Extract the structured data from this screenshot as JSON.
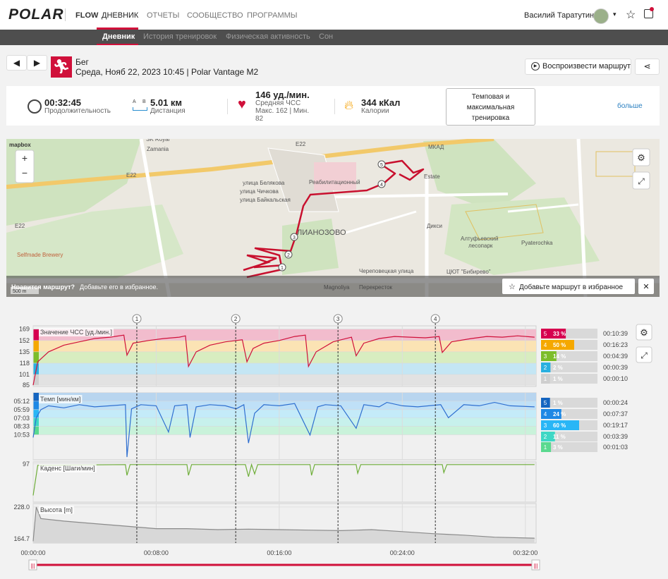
{
  "nav": {
    "logo": "POLAR",
    "flow": "FLOW",
    "items": [
      "ДНЕВНИК",
      "ОТЧЕТЫ",
      "СООБЩЕСТВО",
      "ПРОГРАММЫ"
    ],
    "user": "Василий Таратутин"
  },
  "subnav": [
    "Дневник",
    "История тренировок",
    "Физическая активность",
    "Сон"
  ],
  "session": {
    "sport": "Бег",
    "datetime": "Среда, Нояб 22, 2023 10:45 | Polar Vantage M2",
    "play_route": "Воспроизвести маршрут"
  },
  "summary": {
    "duration": "00:32:45",
    "duration_label": "Продолжительность",
    "distance_icon": [
      "A",
      "B"
    ],
    "distance": "5.01 км",
    "distance_label": "Дистанция",
    "hr_avg": "146 уд./мин.",
    "hr_avg_label": "Средняя ЧСС",
    "hr_maxmin": "Макс. 162 | Мин.",
    "hr_min": "82",
    "calories": "344 кКал",
    "calories_label": "Калории",
    "benefit": [
      "Темповая и",
      "максимальная",
      "тренировка"
    ],
    "more": "больше"
  },
  "map": {
    "attribution": "mapbox",
    "labels": [
      "SK Royal",
      "Zamania",
      "E22",
      "E22",
      "E22",
      "улица Белякова",
      "улица Чичкова",
      "улица Байкальская",
      "Реабилитационный",
      "ЛИАНОЗОВО",
      "Selfmade Brewery",
      "Дикси",
      "Алтуфьевский",
      "лесопарк",
      "Pyaterochka",
      "Estate",
      "Magnoliya",
      "Перекресток",
      "ЦЮТ \"Бибирево\"",
      "Череповецкая улица",
      "МКАД"
    ],
    "route_markers": [
      "1",
      "2",
      "3",
      "4",
      "5"
    ],
    "scale": "500 m",
    "prompt": "Нравится маршрут?",
    "prompt_hint": "Добавьте его в избранное.",
    "favorite": "Добавьте маршрут в избранное",
    "zoom": [
      "+",
      "−"
    ]
  },
  "charts": {
    "xlim": [
      0,
      32.7
    ],
    "xticks": [
      {
        "value": 0,
        "label": "00:00:00"
      },
      {
        "value": 8,
        "label": "00:08:00"
      },
      {
        "value": 16,
        "label": "00:16:00"
      },
      {
        "value": 24,
        "label": "00:24:00"
      },
      {
        "value": 32,
        "label": "00:32:00"
      }
    ],
    "laps": {
      "labels": [
        "1",
        "2",
        "3",
        "4"
      ],
      "x": [
        6.74,
        13.17,
        19.82,
        26.15
      ]
    },
    "panels": [
      {
        "type": "line",
        "key": "hr",
        "title": "Значение ЧСС [уд./мин.]",
        "color": "#d0103a",
        "scale": "linear",
        "ylim": [
          83,
          174
        ],
        "yticks": [
          85,
          101,
          118,
          135,
          152,
          169
        ],
        "bands": "between_ticks",
        "band_colors": [
          "#e2e2e2",
          "#c4e6f4",
          "#d8edc0",
          "#fbe3b4",
          "#f2bccd"
        ],
        "strip_colors": [
          "#cfcfcf",
          "#2ab0e0",
          "#7cbd2a",
          "#f5a800",
          "#d6004f"
        ],
        "x": [
          0,
          0.3,
          1,
          2,
          3,
          4,
          5,
          5.9,
          6.1,
          6.5,
          7.5,
          8.5,
          9.5,
          9.9,
          10.1,
          10.6,
          11.5,
          12.5,
          13.6,
          13.9,
          14.3,
          15,
          16,
          17,
          17.7,
          17.9,
          18.4,
          19.5,
          20.7,
          21,
          21.5,
          22.5,
          23.5,
          24.5,
          25.5,
          26.4,
          26.6,
          27.2,
          28.5,
          29.5,
          30.5,
          31.5,
          32.6
        ],
        "values": [
          85,
          120,
          135,
          145,
          150,
          155,
          157,
          160,
          130,
          148,
          152,
          155,
          157,
          159,
          113,
          135,
          145,
          150,
          153,
          120,
          140,
          148,
          152,
          158,
          160,
          113,
          135,
          150,
          157,
          129,
          148,
          155,
          158,
          157,
          156,
          158,
          134,
          150,
          155,
          158,
          157,
          159,
          157
        ]
      },
      {
        "type": "line",
        "key": "pace",
        "title": "Темп [мин/км]",
        "color": "#2f6fd0",
        "scale": "reciprocal",
        "ylim": [
          60,
          4.6
        ],
        "yticks": [
          {
            "value": 5.2,
            "label": "05:12"
          },
          {
            "value": 5.983,
            "label": "05:59"
          },
          {
            "value": 7.05,
            "label": "07:03"
          },
          {
            "value": 8.55,
            "label": "08:33"
          },
          {
            "value": 10.883,
            "label": "10:53"
          }
        ],
        "bands": "ticks_to_limit",
        "band_colors": [
          "#c9f2da",
          "#c7f1ec",
          "#c4ebf9",
          "#bfe0f7",
          "#b8d5ef"
        ],
        "strip_colors": [
          "#5ad98f",
          "#3ed7c5",
          "#29b6f6",
          "#1e88e5",
          "#1565c0"
        ],
        "x": [
          0,
          0.2,
          0.5,
          1,
          2,
          3,
          4,
          5,
          6,
          6.1,
          6.4,
          7,
          8,
          8.8,
          9.2,
          10,
          10.2,
          10.6,
          11.5,
          12.5,
          13.2,
          13.7,
          14,
          14.4,
          15,
          16,
          17,
          18,
          18.5,
          19,
          20,
          21,
          21.5,
          22.5,
          23,
          24,
          25,
          26.5,
          27,
          28,
          29,
          30,
          31,
          32.6
        ],
        "values": [
          12,
          7,
          6,
          5.6,
          5.8,
          5.5,
          5.7,
          5.6,
          5.5,
          40,
          5.9,
          5.5,
          5.6,
          10,
          5.6,
          5.5,
          12,
          5.7,
          5.5,
          5.6,
          5.9,
          5.5,
          15,
          6.4,
          5.5,
          5.6,
          5.4,
          11,
          5.7,
          5.5,
          5.6,
          9,
          5.5,
          5.7,
          5.3,
          5.6,
          5.7,
          5.5,
          7,
          5.5,
          5.6,
          5.3,
          5.6,
          5.7
        ]
      },
      {
        "type": "line",
        "key": "cadence",
        "title": "Каденс [Шаги/мин]",
        "color": "#6fae3a",
        "scale": "linear",
        "ylim": [
          40,
          100
        ],
        "yticks": [
          97
        ],
        "x": [
          0,
          0.3,
          6,
          6.1,
          6.3,
          10,
          10.1,
          10.3,
          13.8,
          14,
          14.2,
          14.4,
          14.6,
          18,
          18.1,
          18.3,
          21,
          21.1,
          21.3,
          26.6,
          26.7,
          26.9,
          32.6
        ],
        "values": [
          50,
          95,
          96,
          80,
          96,
          96,
          80,
          96,
          96,
          78,
          96,
          82,
          96,
          96,
          80,
          96,
          96,
          83,
          96,
          96,
          84,
          96,
          96
        ]
      },
      {
        "type": "area",
        "key": "altitude",
        "title": "Высота [m]",
        "color": "#8a8a8a",
        "fill": "#d8d8d8",
        "scale": "linear",
        "ylim": [
          156.3,
          235
        ],
        "yticks": [
          {
            "value": 228,
            "label": "228.0"
          },
          164.7
        ],
        "x": [
          0,
          0.2,
          0.5,
          2,
          4,
          6,
          8,
          10,
          12,
          14,
          16,
          18,
          20,
          22,
          24,
          26,
          28,
          30,
          32.6
        ],
        "values": [
          160,
          228,
          205,
          200,
          195,
          190,
          185,
          185,
          183,
          184,
          183,
          182,
          181,
          183,
          179,
          175,
          172,
          168,
          166
        ]
      }
    ],
    "zone_tables": [
      {
        "names": [
          "5",
          "4",
          "3",
          "2",
          "1"
        ],
        "colors": [
          "#d6004f",
          "#f5a800",
          "#7cbd2a",
          "#2ab0e0",
          "#cfcfcf"
        ],
        "percent": [
          33,
          50,
          14,
          2,
          1
        ],
        "percent_labels": [
          "33 %",
          "50 %",
          "14 %",
          "2 %",
          "1 %"
        ],
        "times": [
          "00:10:39",
          "00:16:23",
          "00:04:39",
          "00:00:39",
          "00:00:10"
        ]
      },
      {
        "names": [
          "5",
          "4",
          "3",
          "2",
          "1"
        ],
        "colors": [
          "#1565c0",
          "#1e88e5",
          "#29b6f6",
          "#3ed7c5",
          "#5ad98f"
        ],
        "percent": [
          1,
          24,
          60,
          11,
          3
        ],
        "percent_labels": [
          "1 %",
          "24 %",
          "60 %",
          "11 %",
          "3 %"
        ],
        "times": [
          "00:00:24",
          "00:07:37",
          "00:19:17",
          "00:03:39",
          "00:01:03"
        ]
      }
    ]
  }
}
